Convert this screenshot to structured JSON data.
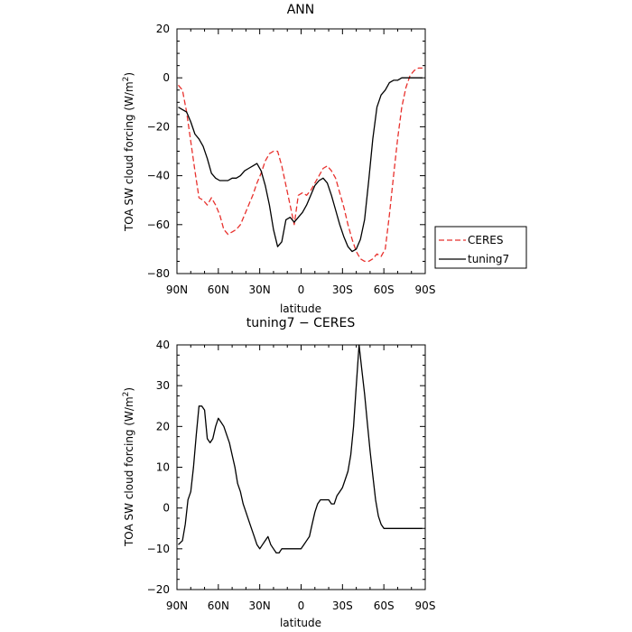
{
  "chart_data": [
    {
      "type": "line",
      "title": "ANN",
      "xlabel": "latitude",
      "ylabel_parts": [
        "TOA SW cloud forcing (W/m",
        "2",
        ")"
      ],
      "ylim": [
        -80,
        20
      ],
      "yticks": [
        -80,
        -60,
        -40,
        -20,
        0,
        20
      ],
      "xlim": [
        90,
        -90
      ],
      "xticks": [
        {
          "value": 90,
          "label": "90N"
        },
        {
          "value": 60,
          "label": "60N"
        },
        {
          "value": 30,
          "label": "30N"
        },
        {
          "value": 0,
          "label": "0"
        },
        {
          "value": -30,
          "label": "30S"
        },
        {
          "value": -60,
          "label": "60S"
        },
        {
          "value": -90,
          "label": "90S"
        }
      ],
      "legend": {
        "placement": "right",
        "entries": [
          "CERES",
          "tuning7"
        ]
      },
      "series": [
        {
          "name": "CERES",
          "color": "#e8312d",
          "dash": "dashed",
          "x": [
            89,
            86,
            83,
            80,
            77,
            74,
            71,
            68,
            65,
            62,
            59,
            56,
            53,
            50,
            47,
            44,
            41,
            38,
            35,
            32,
            29,
            26,
            23,
            20,
            17,
            14,
            11,
            8,
            5,
            2,
            -1,
            -4,
            -7,
            -10,
            -13,
            -16,
            -19,
            -22,
            -25,
            -28,
            -31,
            -34,
            -37,
            -40,
            -43,
            -46,
            -49,
            -52,
            -55,
            -58,
            -61,
            -64,
            -67,
            -70,
            -73,
            -76,
            -79,
            -82,
            -85,
            -88
          ],
          "y": [
            -3,
            -5,
            -14,
            -26,
            -38,
            -49,
            -50,
            -52,
            -49,
            -52,
            -56,
            -62,
            -64,
            -63,
            -62,
            -60,
            -56,
            -52,
            -48,
            -43,
            -39,
            -34,
            -31,
            -30,
            -30,
            -36,
            -44,
            -52,
            -60,
            -48,
            -47,
            -48,
            -46,
            -43,
            -40,
            -37,
            -36,
            -38,
            -41,
            -47,
            -53,
            -60,
            -66,
            -71,
            -74,
            -75,
            -75,
            -74,
            -72,
            -73,
            -70,
            -56,
            -40,
            -25,
            -12,
            -4,
            1,
            3,
            4,
            4
          ]
        },
        {
          "name": "tuning7",
          "color": "#000000",
          "dash": "solid",
          "x": [
            89,
            86,
            83,
            80,
            77,
            74,
            71,
            68,
            65,
            62,
            59,
            56,
            53,
            50,
            47,
            44,
            41,
            38,
            35,
            32,
            29,
            26,
            23,
            20,
            17,
            14,
            11,
            8,
            5,
            2,
            -1,
            -4,
            -7,
            -10,
            -13,
            -16,
            -19,
            -22,
            -25,
            -28,
            -31,
            -34,
            -37,
            -40,
            -43,
            -46,
            -49,
            -52,
            -55,
            -58,
            -61,
            -64,
            -67,
            -70,
            -73,
            -76,
            -79,
            -82,
            -85,
            -88
          ],
          "y": [
            -12,
            -13,
            -14,
            -18,
            -23,
            -25,
            -28,
            -33,
            -39,
            -41,
            -42,
            -42,
            -42,
            -41,
            -41,
            -40,
            -38,
            -37,
            -36,
            -35,
            -38,
            -44,
            -52,
            -62,
            -69,
            -67,
            -58,
            -57,
            -59,
            -57,
            -55,
            -52,
            -48,
            -44,
            -42,
            -41,
            -43,
            -48,
            -54,
            -60,
            -65,
            -69,
            -71,
            -70,
            -66,
            -58,
            -42,
            -25,
            -12,
            -7,
            -5,
            -2,
            -1,
            -1,
            0,
            0,
            0,
            0,
            0,
            0
          ]
        }
      ]
    },
    {
      "type": "line",
      "title": "tuning7 − CERES",
      "xlabel": "latitude",
      "ylabel_parts": [
        "TOA SW cloud forcing (W/m",
        "2",
        ")"
      ],
      "ylim": [
        -20,
        40
      ],
      "yticks": [
        -20,
        -10,
        0,
        10,
        20,
        30,
        40
      ],
      "xlim": [
        90,
        -90
      ],
      "xticks": [
        {
          "value": 90,
          "label": "90N"
        },
        {
          "value": 60,
          "label": "60N"
        },
        {
          "value": 30,
          "label": "30N"
        },
        {
          "value": 0,
          "label": "0"
        },
        {
          "value": -30,
          "label": "30S"
        },
        {
          "value": -60,
          "label": "60S"
        },
        {
          "value": -90,
          "label": "90S"
        }
      ],
      "series": [
        {
          "color": "#000000",
          "dash": "solid",
          "x": [
            89,
            86,
            84,
            82,
            80,
            78,
            76,
            74,
            72,
            70,
            68,
            66,
            64,
            62,
            60,
            58,
            56,
            54,
            52,
            50,
            48,
            46,
            44,
            42,
            40,
            38,
            36,
            34,
            32,
            30,
            28,
            26,
            24,
            22,
            20,
            18,
            16,
            14,
            12,
            10,
            8,
            6,
            4,
            2,
            0,
            -2,
            -4,
            -6,
            -8,
            -10,
            -12,
            -14,
            -16,
            -18,
            -20,
            -22,
            -24,
            -26,
            -28,
            -30,
            -32,
            -34,
            -36,
            -38,
            -40,
            -42,
            -44,
            -46,
            -48,
            -50,
            -52,
            -54,
            -56,
            -58,
            -60,
            -62,
            -64,
            -66,
            -68,
            -70,
            -72,
            -74,
            -76,
            -78,
            -80,
            -82,
            -84,
            -86,
            -88
          ],
          "y": [
            -9,
            -8,
            -4,
            2,
            4,
            10,
            18,
            25,
            25,
            24,
            17,
            16,
            17,
            20,
            22,
            21,
            20,
            18,
            16,
            13,
            10,
            6,
            4,
            1,
            -1,
            -3,
            -5,
            -7,
            -9,
            -10,
            -9,
            -8,
            -7,
            -9,
            -10,
            -11,
            -11,
            -10,
            -10,
            -10,
            -10,
            -10,
            -10,
            -10,
            -10,
            -9,
            -8,
            -7,
            -4,
            -1,
            1,
            2,
            2,
            2,
            2,
            1,
            1,
            3,
            4,
            5,
            7,
            9,
            13,
            20,
            30,
            40,
            34,
            28,
            21,
            14,
            8,
            2,
            -2,
            -4,
            -5,
            -5,
            -5,
            -5,
            -5,
            -5,
            -5,
            -5,
            -5,
            -5,
            -5,
            -5,
            -5,
            -5,
            -5
          ]
        }
      ]
    }
  ]
}
